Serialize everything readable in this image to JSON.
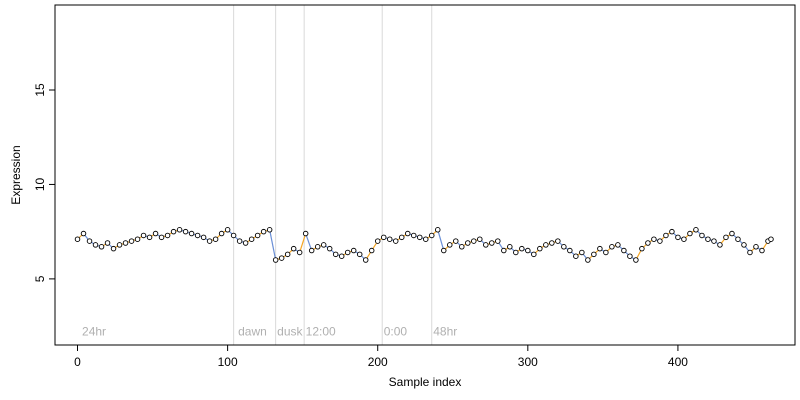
{
  "chart_data": {
    "type": "scatter",
    "title": "",
    "xlabel": "Sample index",
    "ylabel": "Expression",
    "xlim": [
      -15,
      478
    ],
    "ylim": [
      1.5,
      19.5
    ],
    "x_ticks": [
      0,
      100,
      200,
      300,
      400
    ],
    "y_ticks": [
      5,
      10,
      15
    ],
    "grid": false,
    "colors": {
      "point_fill": "#ffffff",
      "point_stroke": "#000000",
      "vline": "#d9d9d9",
      "annotation": "#b0b0b0",
      "line_up": "#f5a623",
      "line_down": "#6a8fd6"
    },
    "vlines": [
      104,
      132,
      151,
      203,
      236
    ],
    "annotations": [
      {
        "label": "24hr",
        "x": 3,
        "y": 2.0
      },
      {
        "label": "dawn",
        "x": 107,
        "y": 2.0
      },
      {
        "label": "dusk",
        "x": 133,
        "y": 2.0
      },
      {
        "label": "12:00",
        "x": 152,
        "y": 2.0
      },
      {
        "label": "0:00",
        "x": 204,
        "y": 2.0
      },
      {
        "label": "48hr",
        "x": 237,
        "y": 2.0
      }
    ],
    "series": [
      {
        "x": [
          0,
          4,
          8,
          12,
          16,
          20,
          24,
          28,
          32,
          36,
          40,
          44,
          48,
          52,
          56,
          60,
          64,
          68,
          72,
          76,
          80,
          84,
          88,
          92,
          96,
          100,
          104,
          108,
          112,
          116,
          120,
          124,
          128,
          132,
          136,
          140,
          144,
          148,
          152,
          156,
          160,
          164,
          168,
          172,
          176,
          180,
          184,
          188,
          192,
          196,
          200,
          204,
          208,
          212,
          216,
          220,
          224,
          228,
          232,
          236,
          240,
          244,
          248,
          252,
          256,
          260,
          264,
          268,
          272,
          276,
          280,
          284,
          288,
          292,
          296,
          300,
          304,
          308,
          312,
          316,
          320,
          324,
          328,
          332,
          336,
          340,
          344,
          348,
          352,
          356,
          360,
          364,
          368,
          372,
          376,
          380,
          384,
          388,
          392,
          396,
          400,
          404,
          408,
          412,
          416,
          420,
          424,
          428,
          432,
          436,
          440,
          444,
          448,
          452,
          456,
          460,
          462
        ],
        "y": [
          7.1,
          7.4,
          7.0,
          6.8,
          6.7,
          6.9,
          6.6,
          6.8,
          6.9,
          7.0,
          7.1,
          7.3,
          7.2,
          7.4,
          7.2,
          7.3,
          7.5,
          7.6,
          7.5,
          7.4,
          7.3,
          7.2,
          7.0,
          7.1,
          7.4,
          7.6,
          7.3,
          7.0,
          6.9,
          7.1,
          7.3,
          7.5,
          7.6,
          6.0,
          6.1,
          6.3,
          6.6,
          6.4,
          7.4,
          6.5,
          6.7,
          6.8,
          6.6,
          6.3,
          6.2,
          6.4,
          6.5,
          6.3,
          6.0,
          6.5,
          7.0,
          7.2,
          7.1,
          7.0,
          7.2,
          7.4,
          7.3,
          7.2,
          7.1,
          7.3,
          7.6,
          6.5,
          6.8,
          7.0,
          6.7,
          6.9,
          7.0,
          7.1,
          6.8,
          6.9,
          7.0,
          6.5,
          6.7,
          6.4,
          6.6,
          6.5,
          6.3,
          6.6,
          6.8,
          6.9,
          7.0,
          6.7,
          6.5,
          6.2,
          6.4,
          6.0,
          6.3,
          6.6,
          6.4,
          6.7,
          6.8,
          6.5,
          6.2,
          6.0,
          6.6,
          6.9,
          7.1,
          7.0,
          7.3,
          7.5,
          7.2,
          7.1,
          7.4,
          7.6,
          7.3,
          7.1,
          7.0,
          6.8,
          7.2,
          7.4,
          7.1,
          6.8,
          6.4,
          6.7,
          6.5,
          7.0,
          7.1
        ]
      }
    ]
  }
}
